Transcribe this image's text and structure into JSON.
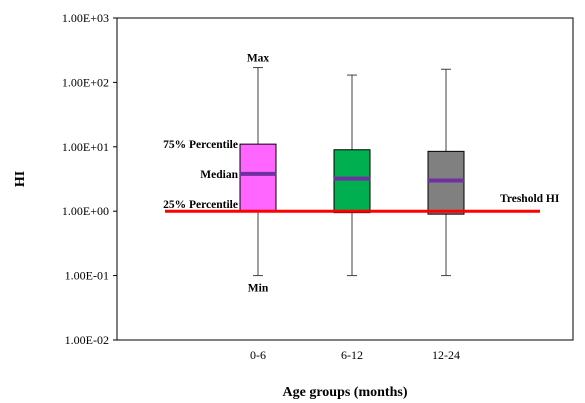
{
  "chart_data": {
    "type": "box",
    "xlabel": "Age groups (months)",
    "ylabel": "HI",
    "y_scale": "log",
    "ylim": [
      0.01,
      1000
    ],
    "y_tick_values": [
      0.01,
      0.1,
      1,
      10,
      100,
      1000
    ],
    "y_tick_labels": [
      "1.00E-02",
      "1.00E-01",
      "1.00E+00",
      "1.00E+01",
      "1.00E+02",
      "1.00E+03"
    ],
    "categories": [
      "0-6",
      "6-12",
      "12-24"
    ],
    "boxes": [
      {
        "category": "0-6",
        "min": 0.1,
        "q1": 1.0,
        "median": 3.8,
        "q3": 11.0,
        "max": 170,
        "color": "#ff66ff"
      },
      {
        "category": "6-12",
        "min": 0.1,
        "q1": 0.95,
        "median": 3.2,
        "q3": 9.0,
        "max": 130,
        "color": "#00b050"
      },
      {
        "category": "12-24",
        "min": 0.1,
        "q1": 0.9,
        "median": 3.0,
        "q3": 8.5,
        "max": 160,
        "color": "#808080"
      }
    ],
    "median_color": "#7030a0",
    "threshold": {
      "value": 1.0,
      "label": "Treshold HI",
      "color": "#ff0000"
    },
    "annotations": {
      "max": "Max",
      "q3": "75% Percentile",
      "median": "Median",
      "q1": "25% Percentile",
      "min": "Min"
    }
  }
}
